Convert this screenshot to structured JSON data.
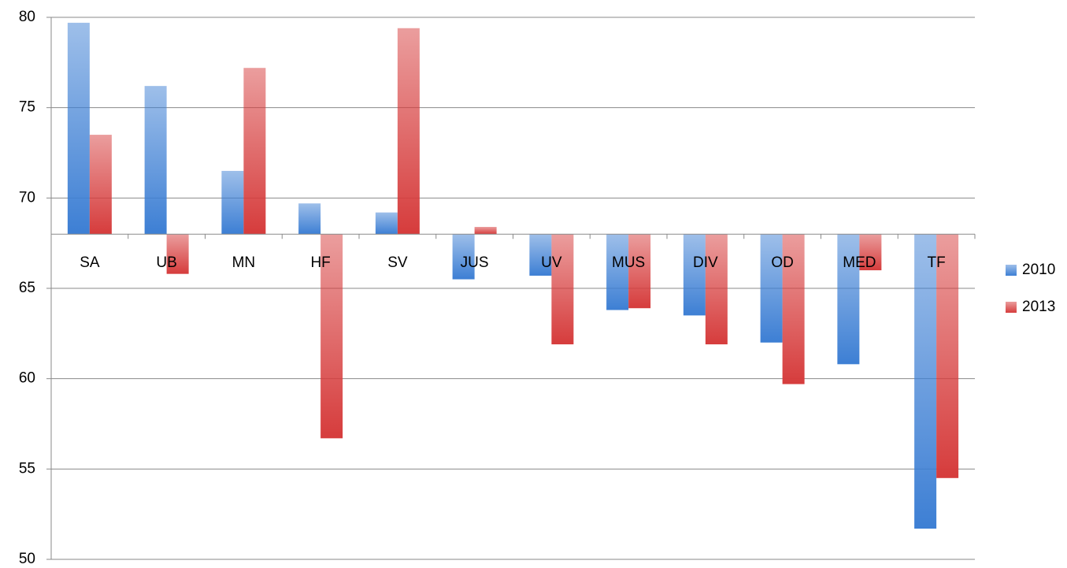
{
  "chart_data": {
    "type": "bar",
    "categories": [
      "SA",
      "UB",
      "MN",
      "HF",
      "SV",
      "JUS",
      "UV",
      "MUS",
      "DIV",
      "OD",
      "MED",
      "TF"
    ],
    "series": [
      {
        "name": "2010",
        "color": "#3d7fd4",
        "values": [
          79.7,
          76.2,
          71.5,
          69.7,
          69.2,
          65.5,
          65.7,
          63.8,
          63.5,
          62.0,
          60.8,
          51.7
        ]
      },
      {
        "name": "2013",
        "color": "#d63c3c",
        "values": [
          73.5,
          65.8,
          77.2,
          56.7,
          79.4,
          68.4,
          61.9,
          63.9,
          61.9,
          59.7,
          66.0,
          54.5
        ]
      }
    ],
    "ylim": [
      50,
      80
    ],
    "yticks": [
      50,
      55,
      60,
      65,
      70,
      75,
      80
    ],
    "grid": true,
    "x_axis_crosses": 68,
    "legend": "right"
  }
}
